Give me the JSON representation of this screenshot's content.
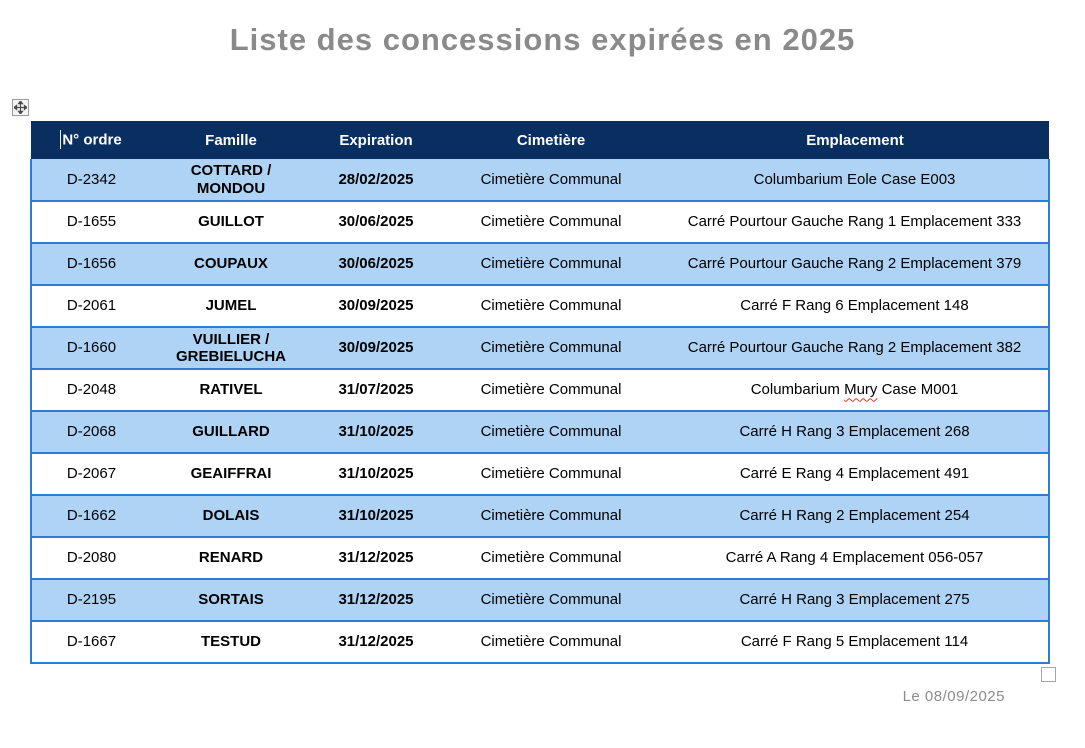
{
  "page": {
    "title": "Liste des concessions expirées en 2025",
    "footer_date": "Le 08/09/2025"
  },
  "icons": {
    "move_table_icon": "four-direction-move-cross",
    "resize_table_icon": "small-square-handle",
    "text_cursor": "caret-i-beam"
  },
  "colors": {
    "header_bg": "#082F5F",
    "header_text": "#FFFFFF",
    "row_alt_bg": "#AED3F5",
    "row_bg": "#FFFFFF",
    "grid_border": "#2E7CD6",
    "title_gray": "#8A8A8A",
    "spellcheck_red": "#E0352B"
  },
  "table": {
    "columns": [
      "N° ordre",
      "Famille",
      "Expiration",
      "Cimetière",
      "Emplacement"
    ],
    "rows": [
      {
        "ordre": "D-2342",
        "famille": "COTTARD / MONDOU",
        "expiration": "28/02/2025",
        "cimetiere": "Cimetière Communal",
        "emplacement": "Columbarium Eole Case E003"
      },
      {
        "ordre": "D-1655",
        "famille": "GUILLOT",
        "expiration": "30/06/2025",
        "cimetiere": "Cimetière Communal",
        "emplacement": "Carré Pourtour Gauche Rang 1 Emplacement 333"
      },
      {
        "ordre": "D-1656",
        "famille": "COUPAUX",
        "expiration": "30/06/2025",
        "cimetiere": "Cimetière Communal",
        "emplacement": "Carré Pourtour Gauche Rang 2 Emplacement 379"
      },
      {
        "ordre": "D-2061",
        "famille": "JUMEL",
        "expiration": "30/09/2025",
        "cimetiere": "Cimetière Communal",
        "emplacement": "Carré F Rang 6 Emplacement 148"
      },
      {
        "ordre": "D-1660",
        "famille": "VUILLIER / GREBIELUCHA",
        "expiration": "30/09/2025",
        "cimetiere": "Cimetière Communal",
        "emplacement": "Carré Pourtour Gauche Rang 2 Emplacement 382"
      },
      {
        "ordre": "D-2048",
        "famille": "RATIVEL",
        "expiration": "31/07/2025",
        "cimetiere": "Cimetière Communal",
        "emplacement": "Columbarium Mury Case M001",
        "spellcheck_word": "Mury"
      },
      {
        "ordre": "D-2068",
        "famille": "GUILLARD",
        "expiration": "31/10/2025",
        "cimetiere": "Cimetière Communal",
        "emplacement": "Carré H Rang 3 Emplacement 268"
      },
      {
        "ordre": "D-2067",
        "famille": "GEAIFFRAI",
        "expiration": "31/10/2025",
        "cimetiere": "Cimetière Communal",
        "emplacement": "Carré E Rang 4 Emplacement 491"
      },
      {
        "ordre": "D-1662",
        "famille": "DOLAIS",
        "expiration": "31/10/2025",
        "cimetiere": "Cimetière Communal",
        "emplacement": "Carré H Rang 2 Emplacement 254"
      },
      {
        "ordre": "D-2080",
        "famille": "RENARD",
        "expiration": "31/12/2025",
        "cimetiere": "Cimetière Communal",
        "emplacement": "Carré A Rang 4 Emplacement 056-057"
      },
      {
        "ordre": "D-2195",
        "famille": "SORTAIS",
        "expiration": "31/12/2025",
        "cimetiere": "Cimetière Communal",
        "emplacement": "Carré H Rang 3 Emplacement 275"
      },
      {
        "ordre": "D-1667",
        "famille": "TESTUD",
        "expiration": "31/12/2025",
        "cimetiere": "Cimetière Communal",
        "emplacement": "Carré F Rang 5 Emplacement 114"
      }
    ]
  }
}
